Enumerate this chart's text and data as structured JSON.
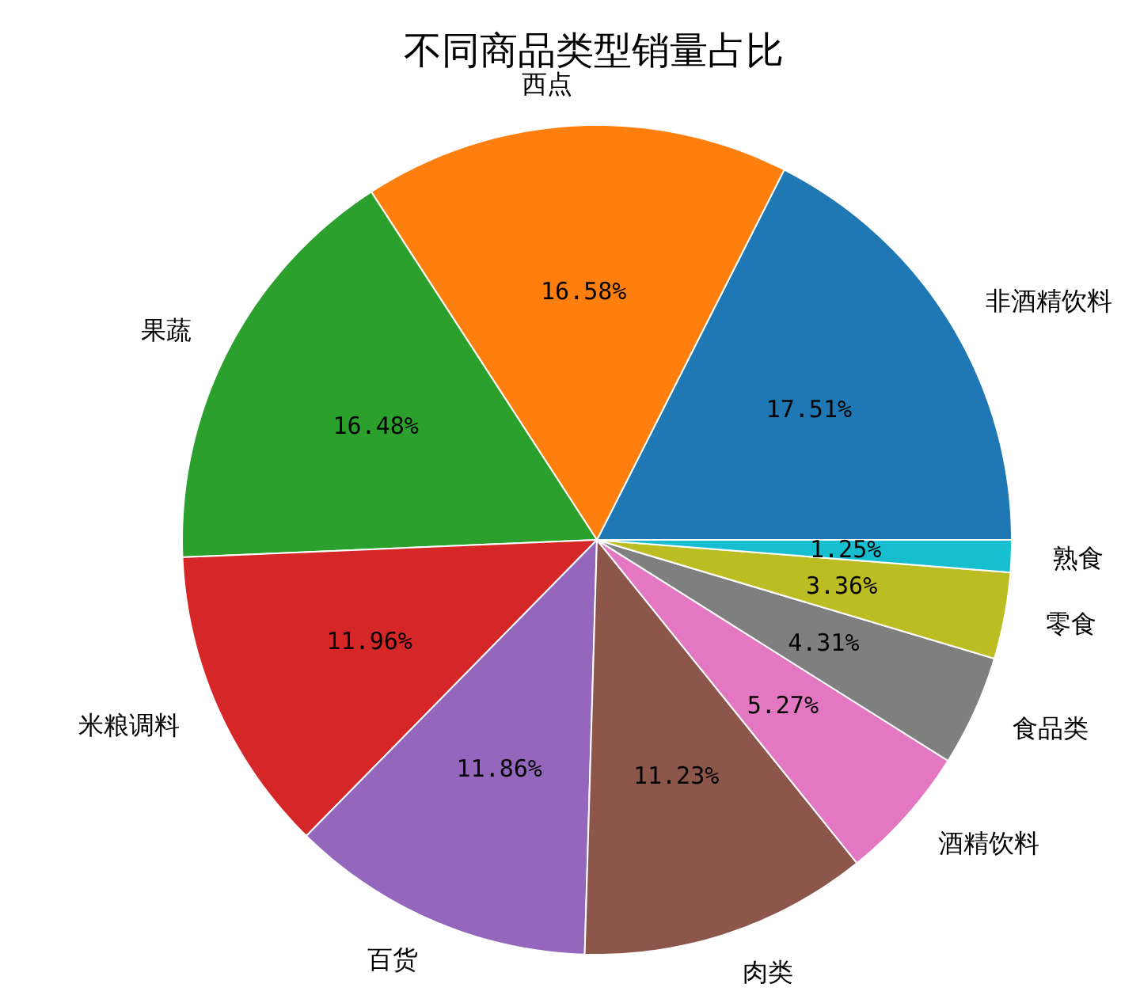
{
  "chart_data": {
    "type": "pie",
    "title": "不同商品类型销量占比",
    "categories": [
      "非酒精饮料",
      "西点",
      "果蔬",
      "米粮调料",
      "百货",
      "肉类",
      "酒精饮料",
      "食品类",
      "零食",
      "熟食"
    ],
    "values": [
      17.51,
      16.58,
      16.48,
      11.96,
      11.86,
      11.23,
      5.27,
      4.31,
      3.36,
      1.25
    ],
    "colors": [
      "#1f77b4",
      "#ff7f0e",
      "#2ca02c",
      "#d62728",
      "#9467bd",
      "#8c564b",
      "#e377c2",
      "#7f7f7f",
      "#bcbd22",
      "#17becf"
    ],
    "value_labels": [
      "17.51%",
      "16.58%",
      "16.48%",
      "11.96%",
      "11.86%",
      "11.23%",
      "5.27%",
      "4.31%",
      "3.36%",
      "1.25%"
    ]
  }
}
